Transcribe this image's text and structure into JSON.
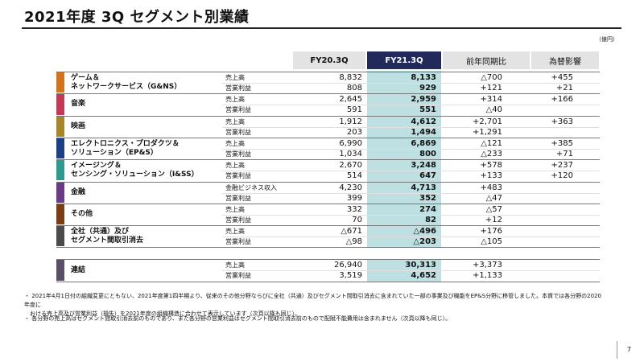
{
  "title": "2021年度 3Q セグメント別業績",
  "unit": "（億円）",
  "headers": {
    "fy20": "FY20.3Q",
    "fy21": "FY21.3Q",
    "yoy": "前年同期比",
    "fx": "為替影響"
  },
  "segments": [
    {
      "name": "ゲーム＆\nネットワークサービス（G&NS）",
      "color": "#d4731e",
      "rows": [
        {
          "metric": "売上高",
          "fy20": "8,832",
          "fy21": "8,133",
          "yoy": "△700",
          "fx": "+455"
        },
        {
          "metric": "営業利益",
          "fy20": "808",
          "fy21": "929",
          "yoy": "+121",
          "fx": "+21"
        }
      ]
    },
    {
      "name": "音楽",
      "color": "#c33a55",
      "rows": [
        {
          "metric": "売上高",
          "fy20": "2,645",
          "fy21": "2,959",
          "yoy": "+314",
          "fx": "+166"
        },
        {
          "metric": "営業利益",
          "fy20": "591",
          "fy21": "551",
          "yoy": "△40",
          "fx": ""
        }
      ]
    },
    {
      "name": "映画",
      "color": "#a68628",
      "rows": [
        {
          "metric": "売上高",
          "fy20": "1,912",
          "fy21": "4,612",
          "yoy": "+2,701",
          "fx": "+363"
        },
        {
          "metric": "営業利益",
          "fy20": "203",
          "fy21": "1,494",
          "yoy": "+1,291",
          "fx": ""
        }
      ]
    },
    {
      "name": "エレクトロニクス・プロダクツ＆\nソリューション（EP&S）",
      "color": "#1d3f86",
      "rows": [
        {
          "metric": "売上高",
          "fy20": "6,990",
          "fy21": "6,869",
          "yoy": "△121",
          "fx": "+385"
        },
        {
          "metric": "営業利益",
          "fy20": "1,034",
          "fy21": "800",
          "yoy": "△233",
          "fx": "+71"
        }
      ]
    },
    {
      "name": "イメージング＆\nセンシング・ソリューション（I&SS）",
      "color": "#2e9a8f",
      "rows": [
        {
          "metric": "売上高",
          "fy20": "2,670",
          "fy21": "3,248",
          "yoy": "+578",
          "fx": "+237"
        },
        {
          "metric": "営業利益",
          "fy20": "514",
          "fy21": "647",
          "yoy": "+133",
          "fx": "+120"
        }
      ]
    },
    {
      "name": "金融",
      "color": "#6a3a86",
      "rows": [
        {
          "metric": "金融ビジネス収入",
          "fy20": "4,230",
          "fy21": "4,713",
          "yoy": "+483",
          "fx": ""
        },
        {
          "metric": "営業利益",
          "fy20": "399",
          "fy21": "352",
          "yoy": "△47",
          "fx": ""
        }
      ]
    },
    {
      "name": "その他",
      "color": "#7a3d16",
      "rows": [
        {
          "metric": "売上高",
          "fy20": "332",
          "fy21": "274",
          "yoy": "△57",
          "fx": ""
        },
        {
          "metric": "営業利益",
          "fy20": "70",
          "fy21": "82",
          "yoy": "+12",
          "fx": ""
        }
      ]
    },
    {
      "name": "全社（共通）及び\nセグメント間取引消去",
      "color": "#4b4b4b",
      "rows": [
        {
          "metric": "売上高",
          "fy20": "△671",
          "fy21": "△496",
          "yoy": "+176",
          "fx": ""
        },
        {
          "metric": "営業利益",
          "fy20": "△98",
          "fy21": "△203",
          "yoy": "△105",
          "fx": ""
        }
      ]
    }
  ],
  "consolidated": {
    "name": "連結",
    "color": "#5a4f66",
    "rows": [
      {
        "metric": "売上高",
        "fy20": "26,940",
        "fy21": "30,313",
        "yoy": "+3,373",
        "fx": ""
      },
      {
        "metric": "営業利益",
        "fy20": "3,519",
        "fy21": "4,652",
        "yoy": "+1,133",
        "fx": ""
      }
    ]
  },
  "notes": [
    "・ 2021年4月1日付の組織変更にともない、2021年度第1四半期より、従来のその他分野ならびに全社（共通）及びセグメント間取引消去に含まれていた一部の事業及び機能をEP&S分野に移管しました。本資では各分野の2020年度に\n　おける売上高及び営業利益（損失）を2021年度の組織構造に合わせて表示しています（次頁以降も同じ）。",
    "・ 各分野の売上高はセグメント間取引消去前のものであり、また各分野の営業利益はセグメント間取引消去前のもので配賦不能費用は含まれません（次頁以降も同じ）。"
  ],
  "page_number": "7"
}
